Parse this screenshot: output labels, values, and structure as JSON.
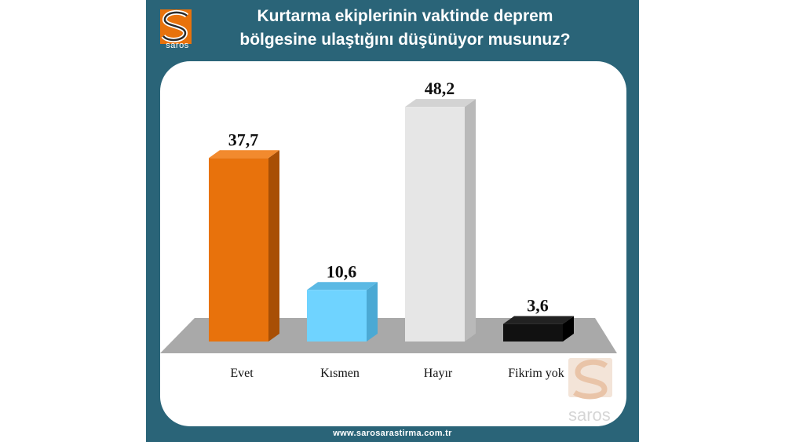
{
  "title_lines": [
    "Kurtarma ekiplerinin vaktinde deprem",
    "bölgesine ulaştığını düşünüyor musunuz?"
  ],
  "brand": {
    "name": "saros",
    "logo_icon": "saros-s-logo-icon"
  },
  "footer": "www.sarosarastirma.com.tr",
  "colors": {
    "frame": "#2a6478",
    "floor": "#a9a9a9",
    "bars": [
      "#e8720c",
      "#6fd3ff",
      "#e6e6e6",
      "#111111"
    ],
    "bar_sides": [
      "#a84f05",
      "#4ba9d4",
      "#b9b9b9",
      "#000000"
    ],
    "bar_tops": [
      "#f28a2e",
      "#5bb9e4",
      "#d3d3d3",
      "#222222"
    ]
  },
  "chart_data": {
    "type": "bar",
    "title": "Kurtarma ekiplerinin vaktinde deprem bölgesine ulaştığını düşünüyor musunuz?",
    "categories": [
      "Evet",
      "Kısmen",
      "Hayır",
      "Fikrim yok"
    ],
    "values": [
      37.7,
      10.6,
      48.2,
      3.6
    ],
    "value_labels": [
      "37,7",
      "10,6",
      "48,2",
      "3,6"
    ],
    "ylim": [
      0,
      50
    ],
    "grid": false,
    "legend": "none",
    "style": "3d-columns"
  }
}
